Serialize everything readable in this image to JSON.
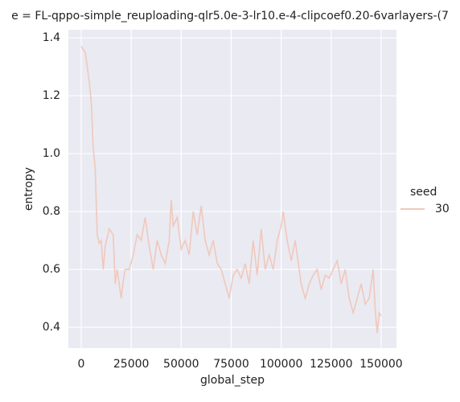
{
  "chart_data": {
    "type": "line",
    "title": "e = FL-qppo-simple_reuploading-qlr5.0e-3-lr10.e-4-clipcoef0.20-6varlayers-(7",
    "x_label": "global_step",
    "y_label": "entropy",
    "legend_title": "seed",
    "legend_position": "right",
    "grid": true,
    "xlim": [
      -6430,
      157640
    ],
    "ylim": [
      0.328,
      1.428
    ],
    "xticks": [
      0,
      25000,
      50000,
      75000,
      100000,
      125000,
      150000
    ],
    "yticks": [
      0.4,
      0.6,
      0.8,
      {
        "value": 1,
        "label": "1.0"
      },
      1.2,
      1.4
    ],
    "x": [
      0,
      2000,
      4000,
      5000,
      6000,
      7000,
      8000,
      9000,
      10000,
      11000,
      12000,
      14000,
      16000,
      17000,
      18000,
      19000,
      20000,
      21000,
      22000,
      24000,
      26000,
      28000,
      30000,
      32000,
      34000,
      36000,
      38000,
      40000,
      42000,
      44000,
      45000,
      46000,
      48000,
      50000,
      52000,
      54000,
      56000,
      58000,
      60000,
      62000,
      64000,
      66000,
      68000,
      70000,
      72000,
      74000,
      76000,
      78000,
      80000,
      82000,
      84000,
      86000,
      88000,
      90000,
      92000,
      94000,
      96000,
      98000,
      100000,
      101000,
      103000,
      105000,
      107000,
      110000,
      112000,
      114000,
      116000,
      118000,
      120000,
      122000,
      124000,
      126000,
      128000,
      130000,
      132000,
      134000,
      136000,
      138000,
      140000,
      142000,
      144000,
      146000,
      147000,
      148000,
      149000,
      150000
    ],
    "series": [
      {
        "name": "30",
        "color": "#f0c8bc",
        "values": [
          1.37,
          1.35,
          1.25,
          1.18,
          1.02,
          0.95,
          0.72,
          0.69,
          0.7,
          0.6,
          0.68,
          0.74,
          0.72,
          0.55,
          0.6,
          0.55,
          0.5,
          0.56,
          0.6,
          0.6,
          0.65,
          0.72,
          0.7,
          0.78,
          0.68,
          0.6,
          0.7,
          0.65,
          0.62,
          0.7,
          0.84,
          0.75,
          0.78,
          0.67,
          0.7,
          0.65,
          0.8,
          0.72,
          0.82,
          0.7,
          0.65,
          0.7,
          0.62,
          0.6,
          0.55,
          0.5,
          0.58,
          0.6,
          0.57,
          0.62,
          0.55,
          0.7,
          0.58,
          0.74,
          0.6,
          0.65,
          0.6,
          0.7,
          0.75,
          0.8,
          0.7,
          0.63,
          0.7,
          0.55,
          0.5,
          0.55,
          0.58,
          0.6,
          0.53,
          0.58,
          0.57,
          0.6,
          0.63,
          0.55,
          0.6,
          0.5,
          0.45,
          0.5,
          0.55,
          0.48,
          0.5,
          0.6,
          0.46,
          0.38,
          0.45,
          0.44
        ]
      }
    ]
  }
}
